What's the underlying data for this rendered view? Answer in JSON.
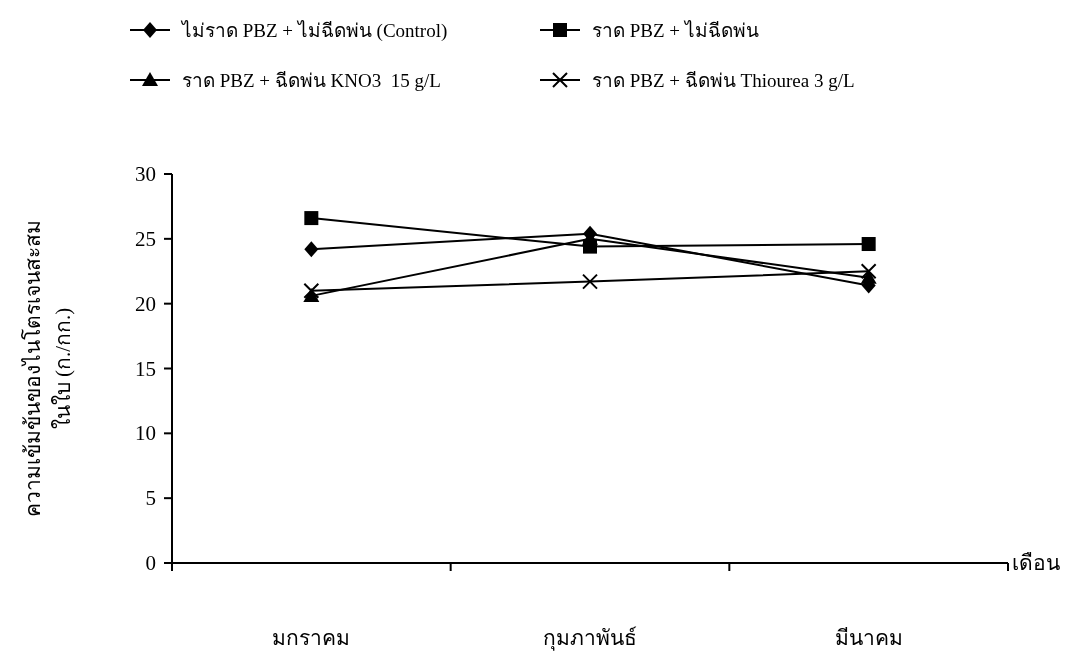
{
  "chart_data": {
    "type": "line",
    "xlabel": "เดือน",
    "ylabel": "ความเข้มข้นของไนโตรเจนสะสม\nในใบ (ก./กก.)",
    "categories": [
      "มกราคม",
      "กุมภาพันธ์",
      "มีนาคม"
    ],
    "ylim": [
      0,
      30
    ],
    "yticks": [
      0,
      5,
      10,
      15,
      20,
      25,
      30
    ],
    "grid": false,
    "legend": "top",
    "line_style": "solid",
    "series": [
      {
        "name": "ไม่ราด PBZ + ไม่ฉีดพ่น (Control)",
        "color": "#000000",
        "marker": "diamond",
        "values": [
          24.2,
          25.4,
          21.4
        ]
      },
      {
        "name": "ราด PBZ + ไม่ฉีดพ่น",
        "color": "#000000",
        "marker": "square",
        "values": [
          26.6,
          24.4,
          24.6
        ]
      },
      {
        "name": "ราด PBZ + ฉีดพ่น KNO3  15 g/L",
        "color": "#000000",
        "marker": "triangle",
        "values": [
          20.6,
          25.0,
          22.0
        ]
      },
      {
        "name": "ราด PBZ + ฉีดพ่น Thiourea 3 g/L",
        "color": "#000000",
        "marker": "cross",
        "values": [
          21.0,
          21.7,
          22.5
        ]
      }
    ]
  }
}
